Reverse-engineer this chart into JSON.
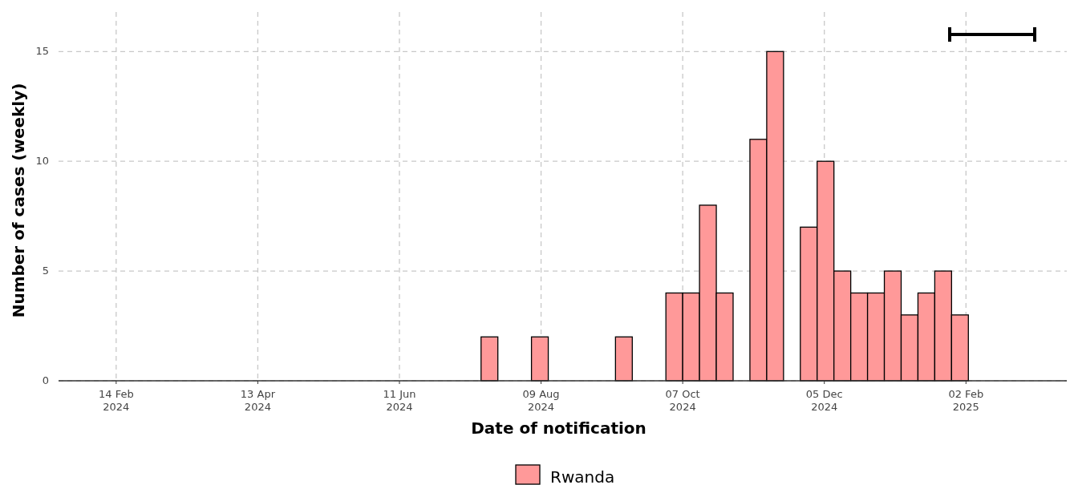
{
  "chart_data": {
    "type": "histogram",
    "xlabel": "Date of notification",
    "ylabel": "Number of cases (weekly)",
    "bins": [
      "2024-07-15",
      "2024-07-22",
      "2024-07-29",
      "2024-08-05",
      "2024-08-12",
      "2024-08-19",
      "2024-08-26",
      "2024-09-02",
      "2024-09-09",
      "2024-09-16",
      "2024-09-23",
      "2024-09-30",
      "2024-10-07",
      "2024-10-14",
      "2024-10-21",
      "2024-10-28",
      "2024-11-04",
      "2024-11-11",
      "2024-11-18",
      "2024-11-25",
      "2024-12-02",
      "2024-12-09",
      "2024-12-16",
      "2024-12-23",
      "2024-12-30",
      "2025-01-06",
      "2025-01-13",
      "2025-01-20",
      "2025-01-27",
      "2025-02-03"
    ],
    "series": [
      {
        "name": "Rwanda",
        "color": "#ff9999",
        "values": [
          2,
          0,
          0,
          2,
          0,
          0,
          0,
          0,
          2,
          0,
          0,
          4,
          4,
          8,
          4,
          0,
          11,
          15,
          0,
          7,
          10,
          5,
          4,
          4,
          5,
          3,
          4,
          5,
          3
        ]
      }
    ],
    "xlim": [
      "2024-01-21",
      "2025-03-16"
    ],
    "xticks": [
      {
        "value": "2024-02-14",
        "label": "14 Feb\n2024"
      },
      {
        "value": "2024-04-13",
        "label": "13 Apr\n2024"
      },
      {
        "value": "2024-06-11",
        "label": "11 Jun\n2024"
      },
      {
        "value": "2024-08-09",
        "label": "09 Aug\n2024"
      },
      {
        "value": "2024-10-07",
        "label": "07 Oct\n2024"
      },
      {
        "value": "2024-12-05",
        "label": "05 Dec\n2024"
      },
      {
        "value": "2025-02-02",
        "label": "02 Feb\n2025"
      }
    ],
    "ylim": [
      0,
      16.8
    ],
    "yticks": [
      0,
      5,
      10,
      15
    ],
    "grid": true,
    "legend": "bottom"
  }
}
